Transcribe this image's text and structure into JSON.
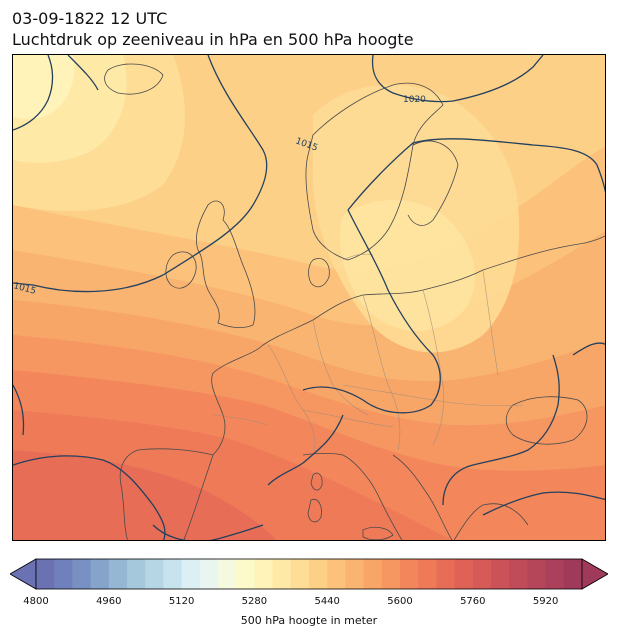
{
  "title_line1": "03-09-1822 12 UTC",
  "title_line2": "Luchtdruk op zeeniveau in hPa en 500 hPa hoogte",
  "colorbar": {
    "label": "500 hPa hoogte in meter",
    "min": 4800,
    "max": 6000,
    "step": 40,
    "ticks": [
      4800,
      4960,
      5120,
      5280,
      5440,
      5600,
      5760,
      5920
    ],
    "colors": [
      "#6a72b4",
      "#6f80bc",
      "#7990c3",
      "#86a3ca",
      "#95b7d3",
      "#a6c8dd",
      "#b6d6e6",
      "#c8e3ee",
      "#dceff4",
      "#e9f5f0",
      "#f4f9df",
      "#fcfacb",
      "#fff3b9",
      "#fee9a6",
      "#fedd96",
      "#fdd088",
      "#fcc27b",
      "#fab471",
      "#f8a568",
      "#f69661",
      "#f3875b",
      "#ee7a58",
      "#e86d57",
      "#e06257",
      "#d65a58",
      "#cb5258",
      "#c04b59",
      "#b5465a",
      "#aa405b",
      "#a03a5b"
    ]
  },
  "isobar_labels": [
    "1020",
    "1015",
    "1015"
  ],
  "map_colors": {
    "contour_line": "#23405e",
    "coast_line": "#4a4a4a",
    "border_line": "#9a8a7a"
  }
}
